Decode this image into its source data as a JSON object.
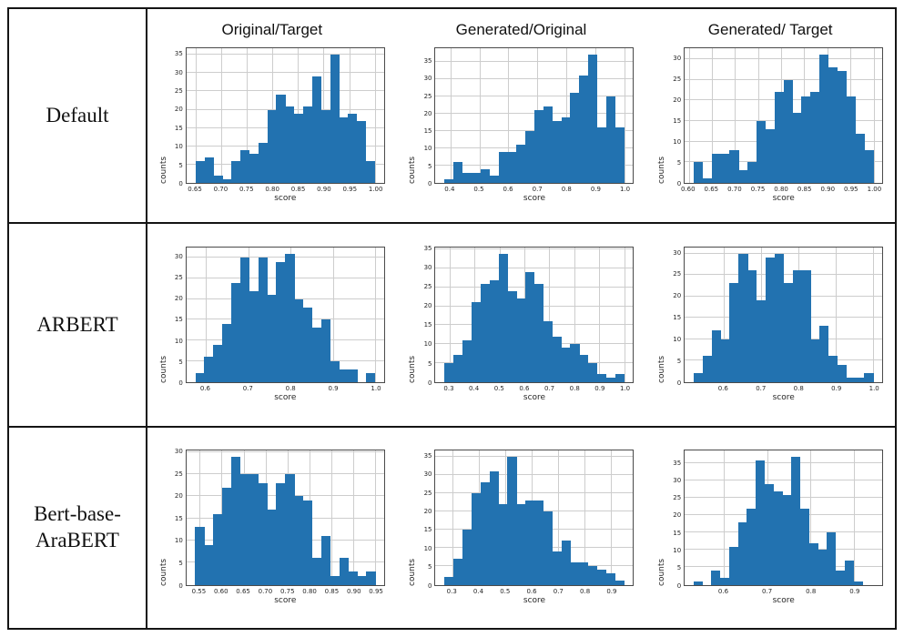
{
  "columns": [
    "Original/Target",
    "Generated/Original",
    "Generated/ Target"
  ],
  "rows": [
    "Default",
    "ARBERT",
    "Bert-base-AraBERT"
  ],
  "bar_color": "#2272b0",
  "chart_data": [
    {
      "type": "histogram",
      "row": "Default",
      "column": "Original/Target",
      "xlabel": "score",
      "ylabel": "counts",
      "bin_start": 0.65,
      "bin_width": 0.0175,
      "counts": [
        6,
        7,
        2,
        1,
        6,
        9,
        8,
        11,
        20,
        24,
        21,
        19,
        21,
        29,
        20,
        35,
        18,
        19,
        17,
        6
      ],
      "x_ticks": [
        "0.65",
        "0.70",
        "0.75",
        "0.80",
        "0.85",
        "0.90",
        "0.95",
        "1.00"
      ],
      "y_ticks": [
        0,
        5,
        10,
        15,
        20,
        25,
        30,
        35
      ],
      "x_axis_min": 0.632,
      "x_axis_max": 1.018,
      "y_axis_max": 36.8
    },
    {
      "type": "histogram",
      "row": "Default",
      "column": "Generated/Original",
      "xlabel": "score",
      "ylabel": "counts",
      "bin_start": 0.38,
      "bin_width": 0.031,
      "counts": [
        1,
        6,
        3,
        3,
        4,
        2,
        9,
        9,
        11,
        15,
        21,
        22,
        18,
        19,
        26,
        31,
        37,
        16,
        25,
        16
      ],
      "x_ticks": [
        "0.4",
        "0.5",
        "0.6",
        "0.7",
        "0.8",
        "0.9",
        "1.0"
      ],
      "y_ticks": [
        0,
        5,
        10,
        15,
        20,
        25,
        30,
        35
      ],
      "x_axis_min": 0.349,
      "x_axis_max": 1.031,
      "y_axis_max": 38.9
    },
    {
      "type": "histogram",
      "row": "Default",
      "column": "Generated/ Target",
      "xlabel": "score",
      "ylabel": "counts",
      "bin_start": 0.61,
      "bin_width": 0.0195,
      "counts": [
        5,
        1,
        7,
        7,
        8,
        3,
        5,
        15,
        13,
        22,
        25,
        17,
        21,
        22,
        31,
        28,
        27,
        21,
        12,
        8
      ],
      "x_ticks": [
        "0.60",
        "0.65",
        "0.70",
        "0.75",
        "0.80",
        "0.85",
        "0.90",
        "0.95",
        "1.00"
      ],
      "y_ticks": [
        0,
        5,
        10,
        15,
        20,
        25,
        30
      ],
      "x_axis_min": 0.591,
      "x_axis_max": 1.019,
      "y_axis_max": 32.6
    },
    {
      "type": "histogram",
      "row": "ARBERT",
      "column": "Original/Target",
      "xlabel": "score",
      "ylabel": "counts",
      "bin_start": 0.575,
      "bin_width": 0.02125,
      "counts": [
        2,
        6,
        9,
        14,
        24,
        30,
        22,
        30,
        21,
        29,
        31,
        20,
        18,
        13,
        15,
        5,
        3,
        3,
        0,
        2
      ],
      "x_ticks": [
        "0.6",
        "0.7",
        "0.8",
        "0.9",
        "1.0"
      ],
      "y_ticks": [
        0,
        5,
        10,
        15,
        20,
        25,
        30
      ],
      "x_axis_min": 0.554,
      "x_axis_max": 1.021,
      "y_axis_max": 32.6
    },
    {
      "type": "histogram",
      "row": "ARBERT",
      "column": "Generated/Original",
      "xlabel": "score",
      "ylabel": "counts",
      "bin_start": 0.28,
      "bin_width": 0.036,
      "counts": [
        5,
        7,
        11,
        21,
        26,
        27,
        34,
        24,
        22,
        29,
        26,
        16,
        12,
        9,
        10,
        7,
        5,
        2,
        1,
        2
      ],
      "x_ticks": [
        "0.3",
        "0.4",
        "0.5",
        "0.6",
        "0.7",
        "0.8",
        "0.9",
        "1.0"
      ],
      "y_ticks": [
        0,
        5,
        10,
        15,
        20,
        25,
        30,
        35
      ],
      "x_axis_min": 0.244,
      "x_axis_max": 1.036,
      "y_axis_max": 35.7
    },
    {
      "type": "histogram",
      "row": "ARBERT",
      "column": "Generated/ Target",
      "xlabel": "score",
      "ylabel": "counts",
      "bin_start": 0.52,
      "bin_width": 0.024,
      "counts": [
        2,
        6,
        12,
        10,
        23,
        30,
        26,
        19,
        29,
        30,
        23,
        26,
        26,
        10,
        13,
        6,
        4,
        1,
        1,
        2
      ],
      "x_ticks": [
        "0.6",
        "0.7",
        "0.8",
        "0.9",
        "1.0"
      ],
      "y_ticks": [
        0,
        5,
        10,
        15,
        20,
        25,
        30
      ],
      "x_axis_min": 0.496,
      "x_axis_max": 1.024,
      "y_axis_max": 31.5
    },
    {
      "type": "histogram",
      "row": "Bert-base-AraBERT",
      "column": "Original/Target",
      "xlabel": "score",
      "ylabel": "counts",
      "bin_start": 0.54,
      "bin_width": 0.0205,
      "counts": [
        13,
        9,
        16,
        22,
        29,
        25,
        25,
        23,
        17,
        23,
        25,
        20,
        19,
        6,
        11,
        2,
        6,
        3,
        2,
        3
      ],
      "x_ticks": [
        "0.55",
        "0.60",
        "0.65",
        "0.70",
        "0.75",
        "0.80",
        "0.85",
        "0.90",
        "0.95"
      ],
      "y_ticks": [
        0,
        5,
        10,
        15,
        20,
        25,
        30
      ],
      "x_axis_min": 0.52,
      "x_axis_max": 0.97,
      "y_axis_max": 30.5
    },
    {
      "type": "histogram",
      "row": "Bert-base-AraBERT",
      "column": "Generated/Original",
      "xlabel": "score",
      "ylabel": "counts",
      "bin_start": 0.27,
      "bin_width": 0.034,
      "counts": [
        2,
        7,
        15,
        25,
        28,
        31,
        22,
        35,
        22,
        23,
        23,
        20,
        9,
        12,
        6,
        6,
        5,
        4,
        3,
        1
      ],
      "x_ticks": [
        "0.3",
        "0.4",
        "0.5",
        "0.6",
        "0.7",
        "0.8",
        "0.9"
      ],
      "y_ticks": [
        0,
        5,
        10,
        15,
        20,
        25,
        30,
        35
      ],
      "x_axis_min": 0.236,
      "x_axis_max": 0.984,
      "y_axis_max": 36.8
    },
    {
      "type": "histogram",
      "row": "Bert-base-AraBERT",
      "column": "Generated/ Target",
      "xlabel": "score",
      "ylabel": "counts",
      "bin_start": 0.53,
      "bin_width": 0.0205,
      "counts": [
        1,
        0,
        4,
        2,
        11,
        18,
        22,
        36,
        29,
        27,
        26,
        37,
        22,
        12,
        10,
        15,
        4,
        7,
        1,
        0
      ],
      "x_ticks": [
        "0.6",
        "0.7",
        "0.8",
        "0.9"
      ],
      "y_ticks": [
        0,
        5,
        10,
        15,
        20,
        25,
        30,
        35
      ],
      "x_axis_min": 0.51,
      "x_axis_max": 0.965,
      "y_axis_max": 38.9
    }
  ]
}
